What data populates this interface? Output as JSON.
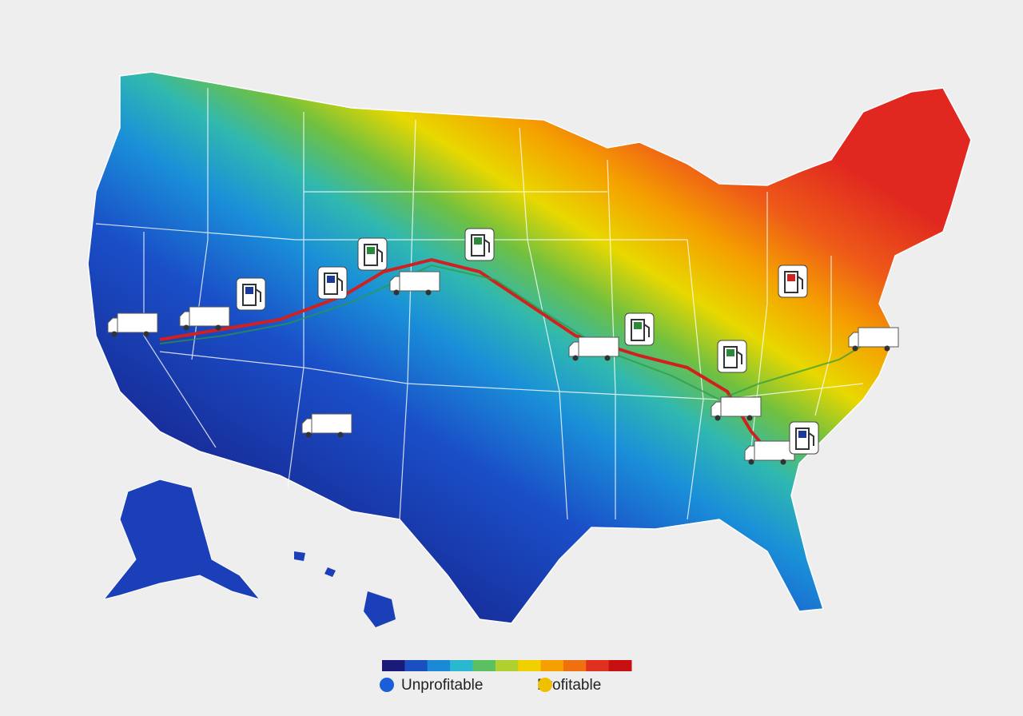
{
  "legend": {
    "scale_colors": [
      "#1a1a7a",
      "#1a4fc0",
      "#1a8ad8",
      "#2ab8d0",
      "#5cc060",
      "#b0d030",
      "#f0d000",
      "#f5a000",
      "#f07010",
      "#e03020",
      "#c81010"
    ],
    "items": [
      {
        "label": "Unprofitable",
        "color": "#1a5fd8"
      },
      {
        "label": "Profitable",
        "color": "#f0c000"
      }
    ]
  }
}
